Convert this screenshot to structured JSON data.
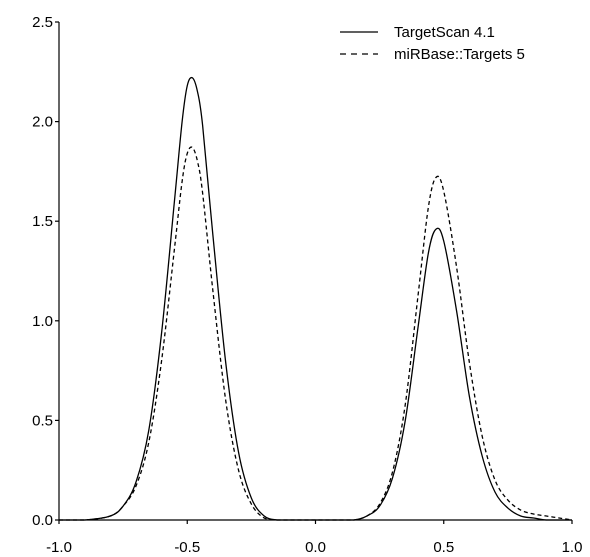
{
  "chart_data": {
    "type": "line",
    "title": "",
    "xlabel": "",
    "ylabel": "",
    "xlim": [
      -1.0,
      1.0
    ],
    "ylim": [
      0.0,
      2.5
    ],
    "x_ticks": [
      -1.0,
      -0.5,
      0.0,
      0.5,
      1.0
    ],
    "x_tick_labels": [
      "-1.0",
      "-0.5",
      "0.0",
      "0.5",
      "1.0"
    ],
    "y_ticks": [
      0.0,
      0.5,
      1.0,
      1.5,
      2.0,
      2.5
    ],
    "y_tick_labels": [
      "0.0",
      "0.5",
      "1.0",
      "1.5",
      "2.0",
      "2.5"
    ],
    "grid": false,
    "legend_position": "top-right",
    "series": [
      {
        "name": "TargetScan 4.1",
        "style": "solid",
        "color": "#000000",
        "x": [
          -1.0,
          -0.9,
          -0.8,
          -0.75,
          -0.7,
          -0.65,
          -0.6,
          -0.55,
          -0.52,
          -0.5,
          -0.48,
          -0.46,
          -0.44,
          -0.4,
          -0.35,
          -0.3,
          -0.25,
          -0.2,
          -0.15,
          -0.1,
          -0.05,
          0.0,
          0.05,
          0.1,
          0.15,
          0.2,
          0.25,
          0.3,
          0.35,
          0.4,
          0.44,
          0.47,
          0.5,
          0.55,
          0.6,
          0.65,
          0.7,
          0.75,
          0.8,
          0.85,
          0.9,
          0.95,
          1.0
        ],
        "y": [
          0.0,
          0.0,
          0.02,
          0.07,
          0.19,
          0.45,
          0.94,
          1.6,
          2.0,
          2.18,
          2.22,
          2.15,
          1.98,
          1.43,
          0.79,
          0.34,
          0.11,
          0.02,
          0.0,
          0.0,
          0.0,
          0.0,
          0.0,
          0.0,
          0.0,
          0.02,
          0.07,
          0.21,
          0.5,
          0.97,
          1.34,
          1.46,
          1.4,
          1.05,
          0.62,
          0.32,
          0.14,
          0.06,
          0.02,
          0.01,
          0.0,
          0.0,
          0.0
        ]
      },
      {
        "name": "miRBase::Targets 5",
        "style": "dashed",
        "color": "#000000",
        "x": [
          -1.0,
          -0.9,
          -0.8,
          -0.75,
          -0.7,
          -0.65,
          -0.6,
          -0.55,
          -0.52,
          -0.5,
          -0.48,
          -0.46,
          -0.44,
          -0.4,
          -0.35,
          -0.3,
          -0.25,
          -0.2,
          -0.15,
          -0.1,
          -0.05,
          0.0,
          0.05,
          0.1,
          0.15,
          0.2,
          0.25,
          0.3,
          0.35,
          0.4,
          0.44,
          0.47,
          0.5,
          0.55,
          0.6,
          0.65,
          0.7,
          0.75,
          0.8,
          0.85,
          0.9,
          0.95,
          1.0
        ],
        "y": [
          0.0,
          0.0,
          0.02,
          0.07,
          0.17,
          0.39,
          0.8,
          1.36,
          1.7,
          1.84,
          1.87,
          1.8,
          1.64,
          1.15,
          0.6,
          0.25,
          0.08,
          0.01,
          0.0,
          0.0,
          0.0,
          0.0,
          0.0,
          0.0,
          0.0,
          0.02,
          0.08,
          0.24,
          0.58,
          1.13,
          1.57,
          1.72,
          1.65,
          1.27,
          0.79,
          0.42,
          0.2,
          0.1,
          0.05,
          0.03,
          0.02,
          0.01,
          0.0
        ]
      }
    ]
  }
}
